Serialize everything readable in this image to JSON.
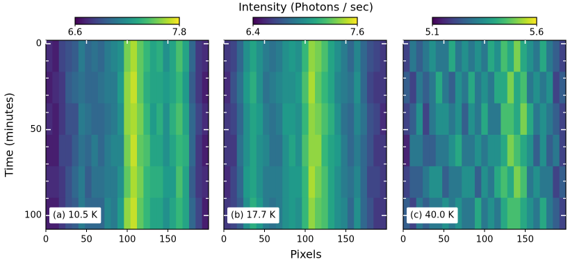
{
  "figure": {
    "title": "Intensity (Photons / sec)",
    "xlabel": "Pixels"
  },
  "chart_data": [
    {
      "type": "heatmap",
      "label": "(a) 10.5 K",
      "ylabel": "Time (minutes)",
      "colormap": "viridis",
      "clim": [
        6.6,
        7.8
      ],
      "cbar_ticks": [
        6.6,
        7.8
      ],
      "xlim": [
        0,
        200
      ],
      "xticks": [
        0,
        50,
        100,
        150
      ],
      "ylim": [
        108,
        -2
      ],
      "yticks": [
        0,
        50,
        100
      ],
      "yminorticks": [
        10,
        20,
        30,
        40,
        60,
        70,
        80,
        90
      ],
      "show_yticklabels": true,
      "z": [
        [
          6.75,
          6.7,
          6.85,
          6.9,
          6.95,
          7.1,
          7.0,
          7.05,
          7.0,
          7.1,
          7.15,
          7.2,
          7.55,
          7.65,
          7.5,
          7.4,
          7.3,
          7.35,
          7.2,
          7.3,
          7.45,
          7.3,
          7.0,
          6.8,
          6.75
        ],
        [
          6.7,
          6.75,
          6.8,
          6.95,
          7.0,
          7.05,
          7.0,
          7.0,
          7.05,
          7.1,
          7.1,
          7.25,
          7.6,
          7.7,
          7.5,
          7.35,
          7.3,
          7.3,
          7.25,
          7.3,
          7.4,
          7.25,
          6.95,
          6.8,
          6.7
        ],
        [
          6.75,
          6.7,
          6.8,
          6.9,
          6.9,
          7.1,
          7.05,
          7.0,
          7.0,
          7.05,
          7.1,
          7.2,
          7.6,
          7.65,
          7.55,
          7.4,
          7.25,
          7.35,
          7.2,
          7.35,
          7.45,
          7.3,
          7.0,
          6.85,
          6.75
        ],
        [
          6.7,
          6.7,
          6.85,
          6.85,
          6.95,
          7.05,
          7.0,
          7.1,
          7.0,
          7.1,
          7.15,
          7.15,
          7.55,
          7.7,
          7.5,
          7.45,
          7.3,
          7.3,
          7.2,
          7.3,
          7.4,
          7.35,
          7.0,
          6.8,
          6.7
        ],
        [
          6.75,
          6.75,
          6.8,
          6.9,
          7.0,
          7.1,
          6.95,
          7.05,
          7.05,
          7.1,
          7.1,
          7.2,
          7.5,
          7.65,
          7.55,
          7.4,
          7.35,
          7.35,
          7.25,
          7.25,
          7.45,
          7.3,
          6.95,
          6.8,
          6.75
        ],
        [
          6.7,
          6.7,
          6.8,
          6.9,
          6.95,
          7.1,
          7.0,
          7.0,
          7.0,
          7.15,
          7.1,
          7.25,
          7.6,
          7.7,
          7.5,
          7.4,
          7.3,
          7.3,
          7.2,
          7.3,
          7.4,
          7.3,
          7.0,
          6.85,
          6.7
        ]
      ]
    },
    {
      "type": "heatmap",
      "label": "(b) 17.7 K",
      "colormap": "viridis",
      "clim": [
        6.4,
        7.6
      ],
      "cbar_ticks": [
        6.4,
        7.6
      ],
      "xlim": [
        0,
        200
      ],
      "xticks": [
        0,
        50,
        100,
        150
      ],
      "ylim": [
        108,
        -2
      ],
      "yticks": [
        0,
        50,
        100
      ],
      "yminorticks": [
        10,
        20,
        30,
        40,
        60,
        70,
        80,
        90
      ],
      "show_yticklabels": false,
      "z": [
        [
          6.6,
          6.65,
          6.8,
          7.0,
          7.1,
          7.0,
          6.9,
          6.85,
          6.9,
          7.0,
          7.05,
          7.0,
          7.2,
          7.4,
          7.35,
          7.25,
          7.1,
          7.0,
          6.9,
          6.8,
          6.95,
          6.8,
          6.7,
          6.65,
          6.6
        ],
        [
          6.55,
          6.7,
          6.85,
          7.05,
          7.15,
          7.0,
          6.85,
          6.9,
          6.95,
          7.0,
          7.0,
          7.05,
          7.25,
          7.45,
          7.3,
          7.2,
          7.1,
          6.95,
          6.9,
          6.85,
          7.0,
          6.8,
          6.65,
          6.6,
          6.6
        ],
        [
          6.6,
          6.65,
          6.8,
          7.0,
          7.1,
          7.05,
          6.9,
          6.85,
          6.9,
          7.05,
          7.05,
          7.0,
          7.2,
          7.4,
          7.35,
          7.25,
          7.15,
          7.0,
          6.85,
          6.8,
          6.95,
          6.85,
          6.7,
          6.65,
          6.55
        ],
        [
          6.6,
          6.6,
          6.85,
          7.0,
          7.1,
          7.0,
          6.95,
          6.85,
          6.85,
          7.0,
          7.1,
          7.0,
          7.25,
          7.4,
          7.4,
          7.2,
          7.1,
          7.05,
          6.9,
          6.8,
          6.9,
          6.8,
          6.7,
          6.6,
          6.6
        ],
        [
          6.55,
          6.65,
          6.8,
          7.05,
          7.1,
          7.0,
          6.9,
          6.9,
          6.9,
          7.0,
          7.05,
          7.05,
          7.2,
          7.45,
          7.35,
          7.25,
          7.1,
          7.0,
          6.9,
          6.85,
          6.95,
          6.8,
          6.65,
          6.65,
          6.6
        ],
        [
          6.6,
          6.65,
          6.75,
          7.0,
          7.15,
          7.05,
          6.9,
          6.85,
          6.9,
          7.0,
          7.05,
          7.0,
          7.2,
          7.4,
          7.3,
          7.25,
          7.1,
          7.0,
          6.95,
          6.8,
          7.0,
          6.8,
          6.7,
          6.6,
          6.6
        ]
      ]
    },
    {
      "type": "heatmap",
      "label": "(c) 40.0 K",
      "colormap": "viridis",
      "clim": [
        5.1,
        5.6
      ],
      "cbar_ticks": [
        5.1,
        5.6
      ],
      "xlim": [
        0,
        200
      ],
      "xticks": [
        0,
        50,
        100,
        150
      ],
      "ylim": [
        108,
        -2
      ],
      "yticks": [
        0,
        50,
        100
      ],
      "yminorticks": [
        10,
        20,
        30,
        40,
        60,
        70,
        80,
        90
      ],
      "show_yticklabels": false,
      "z": [
        [
          5.2,
          5.3,
          5.25,
          5.3,
          5.35,
          5.3,
          5.3,
          5.4,
          5.3,
          5.35,
          5.3,
          5.35,
          5.3,
          5.4,
          5.35,
          5.45,
          5.4,
          5.5,
          5.4,
          5.35,
          5.3,
          5.4,
          5.3,
          5.25,
          5.2
        ],
        [
          5.25,
          5.2,
          5.3,
          5.25,
          5.3,
          5.4,
          5.3,
          5.25,
          5.35,
          5.3,
          5.4,
          5.3,
          5.35,
          5.3,
          5.4,
          5.4,
          5.5,
          5.4,
          5.45,
          5.3,
          5.35,
          5.3,
          5.35,
          5.2,
          5.25
        ],
        [
          5.2,
          5.25,
          5.35,
          5.2,
          5.3,
          5.35,
          5.35,
          5.3,
          5.35,
          5.25,
          5.35,
          5.3,
          5.4,
          5.3,
          5.3,
          5.45,
          5.45,
          5.4,
          5.5,
          5.4,
          5.3,
          5.35,
          5.3,
          5.25,
          5.2
        ],
        [
          5.15,
          5.3,
          5.3,
          5.25,
          5.25,
          5.3,
          5.3,
          5.35,
          5.4,
          5.3,
          5.3,
          5.35,
          5.3,
          5.35,
          5.35,
          5.4,
          5.5,
          5.45,
          5.4,
          5.35,
          5.25,
          5.35,
          5.25,
          5.3,
          5.2
        ],
        [
          5.2,
          5.25,
          5.25,
          5.3,
          5.35,
          5.35,
          5.25,
          5.3,
          5.3,
          5.35,
          5.35,
          5.25,
          5.35,
          5.3,
          5.4,
          5.45,
          5.4,
          5.5,
          5.45,
          5.3,
          5.35,
          5.3,
          5.3,
          5.2,
          5.25
        ],
        [
          5.25,
          5.2,
          5.3,
          5.25,
          5.3,
          5.3,
          5.35,
          5.3,
          5.35,
          5.3,
          5.3,
          5.4,
          5.3,
          5.35,
          5.3,
          5.4,
          5.45,
          5.45,
          5.4,
          5.35,
          5.3,
          5.4,
          5.3,
          5.25,
          5.2
        ]
      ]
    }
  ]
}
